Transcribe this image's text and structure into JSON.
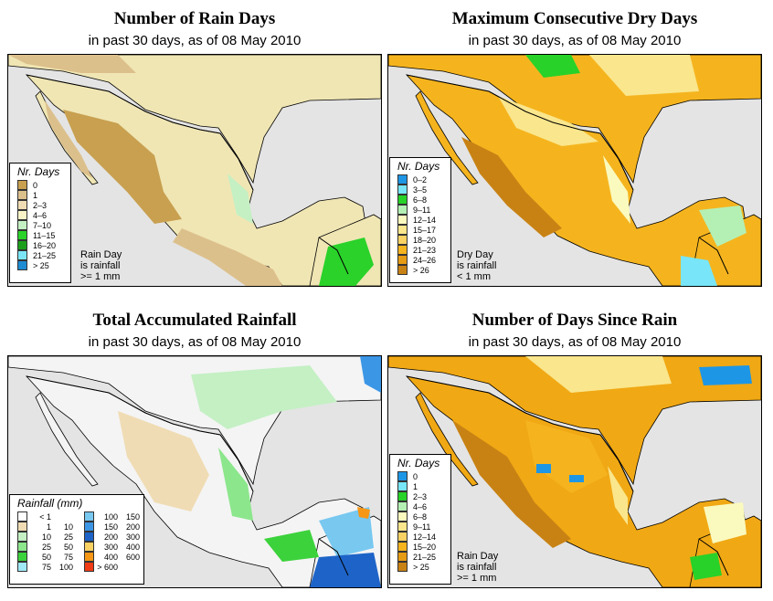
{
  "panels": [
    {
      "title": "Number of Rain Days",
      "subtitle": "in past 30 days, as of  08 May 2010",
      "legend_title": "Nr. Days",
      "legend": [
        {
          "label": "0",
          "color": "#c8a050"
        },
        {
          "label": "1",
          "color": "#dcc08c"
        },
        {
          "label": "2–3",
          "color": "#f0dcb4"
        },
        {
          "label": "4–6",
          "color": "#f8f4c8"
        },
        {
          "label": "7–10",
          "color": "#c4f0c4"
        },
        {
          "label": "11–15",
          "color": "#2ad22a"
        },
        {
          "label": "16–20",
          "color": "#1ca01c"
        },
        {
          "label": "21–25",
          "color": "#7ce6f8"
        },
        {
          "label": "> 25",
          "color": "#1e8cd2"
        }
      ],
      "note": [
        "Rain Day",
        "is rainfall",
        ">= 1 mm"
      ],
      "land_color": "#f0e6b4"
    },
    {
      "title": "Maximum Consecutive Dry Days",
      "subtitle": "in past 30 days, as of  08 May 2010",
      "legend_title": "Nr. Days",
      "legend": [
        {
          "label": "0–2",
          "color": "#1e96e6"
        },
        {
          "label": "3–5",
          "color": "#78e6f8"
        },
        {
          "label": "6–8",
          "color": "#28d228"
        },
        {
          "label": "9–11",
          "color": "#b4f0b4"
        },
        {
          "label": "12–14",
          "color": "#fafabe"
        },
        {
          "label": "15–17",
          "color": "#fae68c"
        },
        {
          "label": "18–20",
          "color": "#fad264"
        },
        {
          "label": "21–23",
          "color": "#f5b41e"
        },
        {
          "label": "24–26",
          "color": "#e69b14"
        },
        {
          "label": "> 26",
          "color": "#c88214"
        }
      ],
      "note": [
        "Dry Day",
        "is rainfall",
        "< 1 mm"
      ],
      "land_color": "#f5b41e"
    },
    {
      "title": "Total Accumulated Rainfall",
      "subtitle": "in past 30 days, as of  08 May 2010",
      "legend_title": "Rainfall (mm)",
      "legend_left": [
        {
          "lo": "< 1",
          "hi": "",
          "color": "#ffffff"
        },
        {
          "lo": "1",
          "hi": "10",
          "color": "#f0dcb4"
        },
        {
          "lo": "10",
          "hi": "25",
          "color": "#c4f0c4"
        },
        {
          "lo": "25",
          "hi": "50",
          "color": "#8ce68c"
        },
        {
          "lo": "50",
          "hi": "75",
          "color": "#3cd23c"
        },
        {
          "lo": "75",
          "hi": "100",
          "color": "#a0eaf8"
        }
      ],
      "legend_right": [
        {
          "lo": "100",
          "hi": "150",
          "color": "#78c8f0"
        },
        {
          "lo": "150",
          "hi": "200",
          "color": "#3c96e6"
        },
        {
          "lo": "200",
          "hi": "300",
          "color": "#1e64c8"
        },
        {
          "lo": "300",
          "hi": "400",
          "color": "#fad264"
        },
        {
          "lo": "400",
          "hi": "600",
          "color": "#f59614"
        },
        {
          "lo": "> 600",
          "hi": "",
          "color": "#f03c14"
        }
      ],
      "land_color": "#f4f4f4"
    },
    {
      "title": "Number of Days Since Rain",
      "subtitle": "in past 30 days, as of  08 May 2010",
      "legend_title": "Nr. Days",
      "legend": [
        {
          "label": "0",
          "color": "#1e96e6"
        },
        {
          "label": "1",
          "color": "#78e6f8"
        },
        {
          "label": "2–3",
          "color": "#28d228"
        },
        {
          "label": "4–6",
          "color": "#b4f0b4"
        },
        {
          "label": "6–8",
          "color": "#fafabe"
        },
        {
          "label": "9–11",
          "color": "#fae68c"
        },
        {
          "label": "12–14",
          "color": "#fad264"
        },
        {
          "label": "15–20",
          "color": "#f5b41e"
        },
        {
          "label": "21–25",
          "color": "#e69b14"
        },
        {
          "label": "> 25",
          "color": "#c88214"
        }
      ],
      "note": [
        "Rain Day",
        "is rainfall",
        ">= 1 mm"
      ],
      "land_color": "#f0a814"
    }
  ]
}
